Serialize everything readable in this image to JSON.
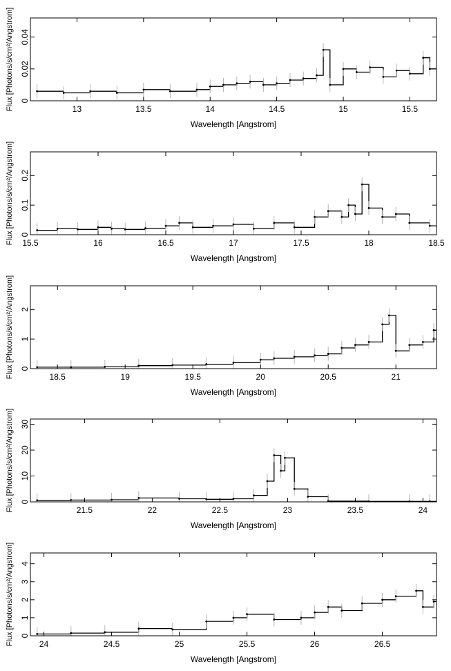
{
  "figure": {
    "title": ""
  },
  "chart_data": [
    {
      "type": "line",
      "xlabel": "Wavelength [Angstrom]",
      "ylabel": "Flux [Photons/s/cm²/Angstrom]",
      "xlim": [
        12.65,
        15.7
      ],
      "ylim": [
        0,
        0.052
      ],
      "xticks": [
        13,
        13.5,
        14,
        14.5,
        15,
        15.5
      ],
      "xtick_labels": [
        "13",
        "13.5",
        "14",
        "14.5",
        "15",
        "15.5"
      ],
      "yticks": [
        0,
        0.02,
        0.04
      ],
      "ytick_labels": [
        "0",
        "0.02",
        "0.04"
      ],
      "x": [
        12.7,
        12.9,
        13.1,
        13.3,
        13.5,
        13.7,
        13.9,
        14.0,
        14.1,
        14.2,
        14.3,
        14.4,
        14.5,
        14.6,
        14.7,
        14.8,
        14.85,
        14.9,
        15.0,
        15.1,
        15.2,
        15.3,
        15.4,
        15.5,
        15.6,
        15.65
      ],
      "y": [
        0.006,
        0.005,
        0.006,
        0.005,
        0.007,
        0.006,
        0.007,
        0.009,
        0.01,
        0.011,
        0.012,
        0.01,
        0.011,
        0.013,
        0.014,
        0.016,
        0.032,
        0.01,
        0.02,
        0.018,
        0.021,
        0.015,
        0.019,
        0.017,
        0.027,
        0.02
      ]
    },
    {
      "type": "line",
      "xlabel": "Wavelength [Angstrom]",
      "ylabel": "Flux [Photons/s/cm²/Angstrom]",
      "xlim": [
        15.5,
        18.5
      ],
      "ylim": [
        0,
        0.28
      ],
      "xticks": [
        15.5,
        16,
        16.5,
        17,
        17.5,
        18,
        18.5
      ],
      "xtick_labels": [
        "15.5",
        "16",
        "16.5",
        "17",
        "17.5",
        "18",
        "18.5"
      ],
      "yticks": [
        0,
        0.1,
        0.2
      ],
      "ytick_labels": [
        "0",
        "0.1",
        "0.2"
      ],
      "x": [
        15.55,
        15.7,
        15.85,
        16.0,
        16.1,
        16.2,
        16.35,
        16.5,
        16.6,
        16.7,
        16.85,
        17.0,
        17.15,
        17.3,
        17.45,
        17.6,
        17.7,
        17.8,
        17.85,
        17.9,
        17.95,
        18.0,
        18.1,
        18.2,
        18.3,
        18.45
      ],
      "y": [
        0.015,
        0.02,
        0.018,
        0.025,
        0.02,
        0.018,
        0.022,
        0.03,
        0.04,
        0.025,
        0.03,
        0.035,
        0.02,
        0.04,
        0.025,
        0.06,
        0.08,
        0.06,
        0.1,
        0.07,
        0.17,
        0.09,
        0.06,
        0.07,
        0.04,
        0.03
      ]
    },
    {
      "type": "line",
      "xlabel": "Wavelength [Angstrom]",
      "ylabel": "Flux [Photons/s/cm²/Angstrom]",
      "xlim": [
        18.3,
        21.3
      ],
      "ylim": [
        0,
        2.8
      ],
      "xticks": [
        18.5,
        19,
        19.5,
        20,
        20.5,
        21
      ],
      "xtick_labels": [
        "18.5",
        "19",
        "19.5",
        "20",
        "20.5",
        "21"
      ],
      "yticks": [
        0,
        1,
        2
      ],
      "ytick_labels": [
        "0",
        "1",
        "2"
      ],
      "x": [
        18.35,
        18.6,
        18.85,
        19.1,
        19.35,
        19.6,
        19.8,
        20.0,
        20.1,
        20.25,
        20.4,
        20.5,
        20.6,
        20.7,
        20.8,
        20.9,
        20.95,
        21.0,
        21.1,
        21.2,
        21.28
      ],
      "y": [
        0.05,
        0.05,
        0.06,
        0.1,
        0.12,
        0.15,
        0.2,
        0.3,
        0.35,
        0.4,
        0.45,
        0.5,
        0.7,
        0.8,
        0.9,
        1.5,
        1.8,
        0.6,
        0.8,
        0.9,
        1.3
      ]
    },
    {
      "type": "line",
      "xlabel": "Wavelength [Angstrom]",
      "ylabel": "Flux [Photons/s/cm²/Angstrom]",
      "xlim": [
        21.1,
        24.1
      ],
      "ylim": [
        0,
        32
      ],
      "xticks": [
        21.5,
        22,
        22.5,
        23,
        23.5,
        24
      ],
      "xtick_labels": [
        "21.5",
        "22",
        "22.5",
        "23",
        "23.5",
        "24"
      ],
      "yticks": [
        0,
        10,
        20,
        30
      ],
      "ytick_labels": [
        "0",
        "10",
        "20",
        "30"
      ],
      "x": [
        21.15,
        21.4,
        21.7,
        21.9,
        22.2,
        22.4,
        22.6,
        22.75,
        22.85,
        22.9,
        22.95,
        22.98,
        23.05,
        23.15,
        23.3,
        23.6,
        23.9,
        24.05
      ],
      "y": [
        0.6,
        0.7,
        0.8,
        1.5,
        1.2,
        1.0,
        1.2,
        2.5,
        8.0,
        18.0,
        12.0,
        17.0,
        5.0,
        2.0,
        0.3,
        0.2,
        0.2,
        0.2
      ]
    },
    {
      "type": "line",
      "xlabel": "Wavelength [Angstrom]",
      "ylabel": "Flux [Photons/s/cm²/Angstrom]",
      "xlim": [
        23.9,
        26.9
      ],
      "ylim": [
        0,
        4.6
      ],
      "xticks": [
        24,
        24.5,
        25,
        25.5,
        26,
        26.5
      ],
      "xtick_labels": [
        "24",
        "24.5",
        "25",
        "25.5",
        "26",
        "26.5"
      ],
      "yticks": [
        0,
        1,
        2,
        3,
        4
      ],
      "ytick_labels": [
        "0",
        "1",
        "2",
        "3",
        "4"
      ],
      "x": [
        23.95,
        24.2,
        24.45,
        24.7,
        24.95,
        25.2,
        25.4,
        25.5,
        25.7,
        25.9,
        26.0,
        26.1,
        26.2,
        26.35,
        26.5,
        26.6,
        26.75,
        26.8,
        26.88
      ],
      "y": [
        0.1,
        0.15,
        0.2,
        0.4,
        0.35,
        0.8,
        1.0,
        1.2,
        0.9,
        1.0,
        1.3,
        1.6,
        1.4,
        1.8,
        2.0,
        2.2,
        2.5,
        1.6,
        1.9
      ]
    }
  ]
}
